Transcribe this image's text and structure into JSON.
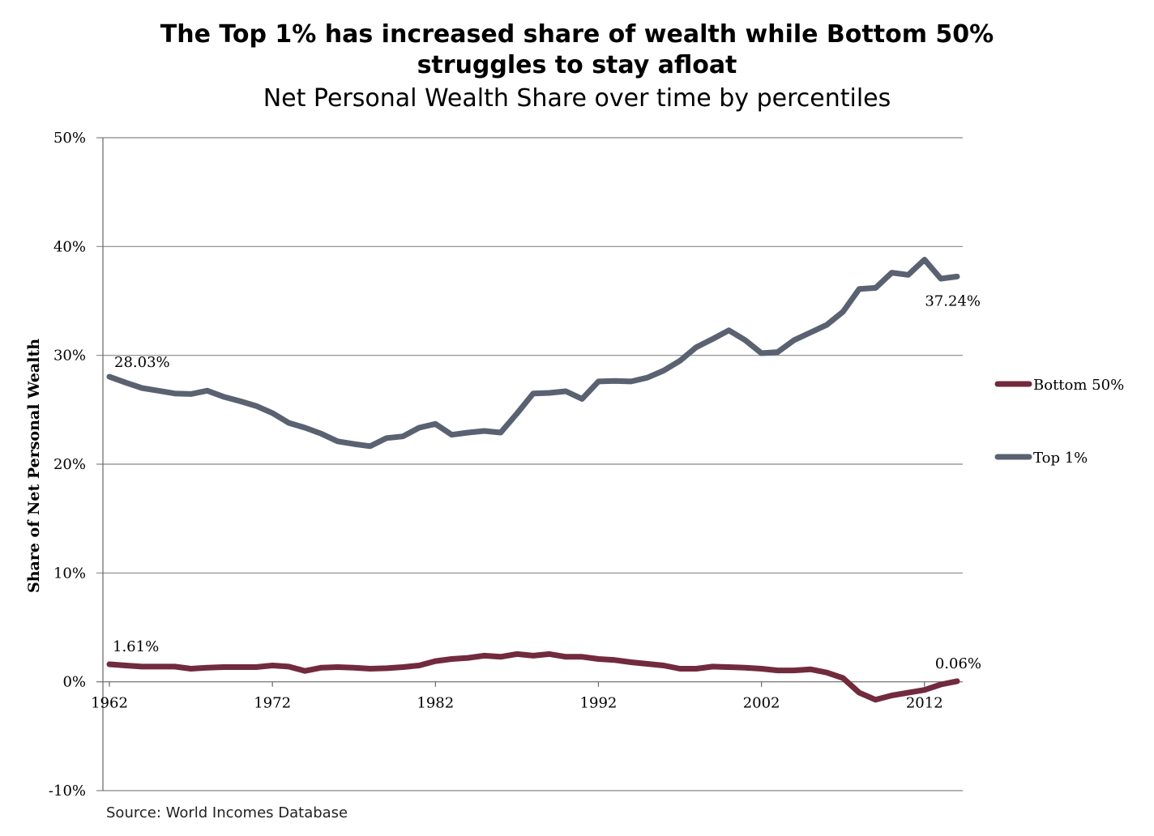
{
  "title": {
    "line1": "The Top 1% has increased share of wealth while Bottom 50%",
    "line2": "struggles to stay afloat"
  },
  "subtitle": "Net Personal Wealth Share over time by percentiles",
  "source": "Source: World Incomes Database",
  "colors": {
    "top1": "#5a6272",
    "bottom50": "#722a3d",
    "grid": "#888888",
    "axis": "#666666"
  },
  "chart_data": {
    "type": "line",
    "ylabel": "Share of Net Personal Wealth",
    "xlabel": "",
    "ylim": [
      -10,
      50
    ],
    "yticks": [
      -10,
      0,
      10,
      20,
      30,
      40,
      50
    ],
    "ytick_labels": [
      "-10%",
      "0%",
      "10%",
      "20%",
      "30%",
      "40%",
      "50%"
    ],
    "xlim": [
      1962,
      2014
    ],
    "xticks": [
      1962,
      1972,
      1982,
      1992,
      2002,
      2012
    ],
    "xtick_labels": [
      "1962",
      "1972",
      "1982",
      "1992",
      "2002",
      "2012"
    ],
    "grid": "horizontal",
    "legend_position": "right",
    "x": [
      1962,
      1963,
      1964,
      1965,
      1966,
      1967,
      1968,
      1969,
      1970,
      1971,
      1972,
      1973,
      1974,
      1975,
      1976,
      1977,
      1978,
      1979,
      1980,
      1981,
      1982,
      1983,
      1984,
      1985,
      1986,
      1987,
      1988,
      1989,
      1990,
      1991,
      1992,
      1993,
      1994,
      1995,
      1996,
      1997,
      1998,
      1999,
      2000,
      2001,
      2002,
      2003,
      2004,
      2005,
      2006,
      2007,
      2008,
      2009,
      2010,
      2011,
      2012,
      2013,
      2014
    ],
    "series": [
      {
        "name": "Bottom 50%",
        "color": "#722a3d",
        "values": [
          1.61,
          1.5,
          1.4,
          1.4,
          1.4,
          1.2,
          1.3,
          1.35,
          1.35,
          1.35,
          1.5,
          1.4,
          1.0,
          1.3,
          1.35,
          1.3,
          1.2,
          1.25,
          1.35,
          1.5,
          1.9,
          2.1,
          2.2,
          2.4,
          2.3,
          2.55,
          2.4,
          2.55,
          2.3,
          2.3,
          2.1,
          2.0,
          1.8,
          1.65,
          1.5,
          1.2,
          1.2,
          1.4,
          1.35,
          1.3,
          1.2,
          1.05,
          1.05,
          1.15,
          0.85,
          0.35,
          -1.0,
          -1.65,
          -1.25,
          -1.0,
          -0.75,
          -0.25,
          0.06
        ],
        "start_label": "1.61%",
        "end_label": "0.06%"
      },
      {
        "name": "Top 1%",
        "color": "#5a6272",
        "values": [
          28.03,
          27.5,
          27.0,
          26.75,
          26.5,
          26.45,
          26.75,
          26.2,
          25.8,
          25.35,
          24.7,
          23.8,
          23.35,
          22.8,
          22.1,
          21.85,
          21.65,
          22.4,
          22.55,
          23.35,
          23.7,
          22.7,
          22.9,
          23.05,
          22.9,
          24.65,
          26.5,
          26.55,
          26.7,
          26.0,
          27.6,
          27.65,
          27.6,
          27.95,
          28.6,
          29.5,
          30.75,
          31.5,
          32.3,
          31.4,
          30.2,
          30.3,
          31.4,
          32.1,
          32.8,
          34.0,
          36.1,
          36.2,
          37.6,
          37.4,
          38.8,
          37.05,
          37.24
        ],
        "start_label": "28.03%",
        "end_label": "37.24%"
      }
    ]
  }
}
